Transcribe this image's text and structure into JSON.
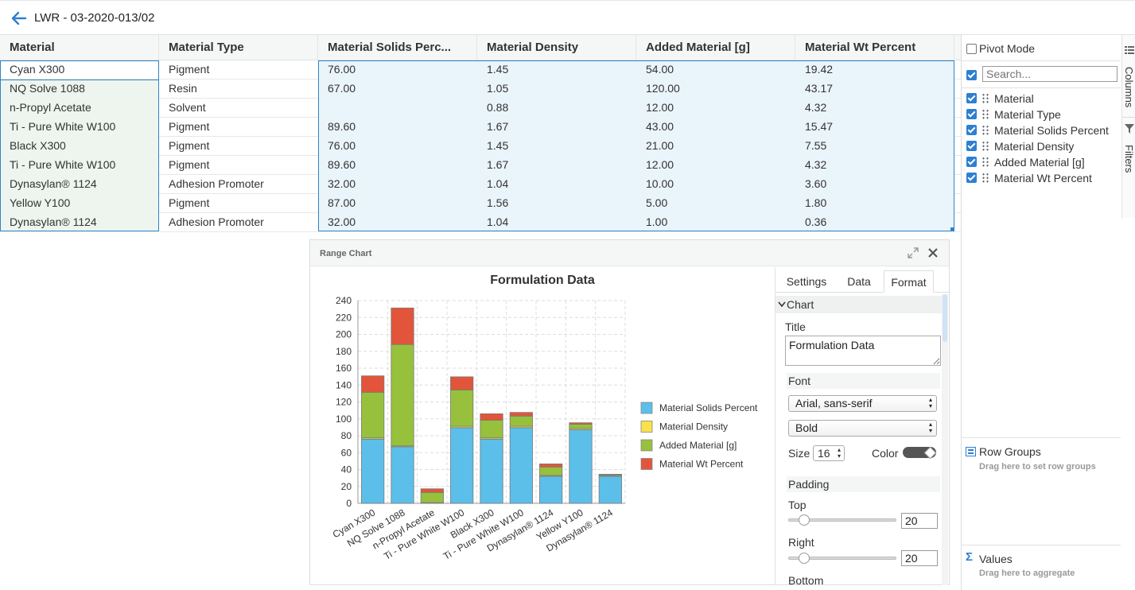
{
  "page": {
    "title": "LWR - 03-2020-013/02"
  },
  "grid": {
    "columns": [
      "Material",
      "Material Type",
      "Material Solids Perc...",
      "Material Density",
      "Added Material [g]",
      "Material Wt Percent"
    ],
    "rows": [
      [
        "Cyan X300",
        "Pigment",
        "76.00",
        "1.45",
        "54.00",
        "19.42"
      ],
      [
        "NQ Solve 1088",
        "Resin",
        "67.00",
        "1.05",
        "120.00",
        "43.17"
      ],
      [
        "n-Propyl Acetate",
        "Solvent",
        "",
        "0.88",
        "12.00",
        "4.32"
      ],
      [
        "Ti - Pure White W100",
        "Pigment",
        "89.60",
        "1.67",
        "43.00",
        "15.47"
      ],
      [
        "Black X300",
        "Pigment",
        "76.00",
        "1.45",
        "21.00",
        "7.55"
      ],
      [
        "Ti - Pure White W100",
        "Pigment",
        "89.60",
        "1.67",
        "12.00",
        "4.32"
      ],
      [
        "Dynasylan® 1124",
        "Adhesion Promoter",
        "32.00",
        "1.04",
        "10.00",
        "3.60"
      ],
      [
        "Yellow Y100",
        "Pigment",
        "87.00",
        "1.56",
        "5.00",
        "1.80"
      ],
      [
        "Dynasylan® 1124",
        "Adhesion Promoter",
        "32.00",
        "1.04",
        "1.00",
        "0.36"
      ]
    ]
  },
  "side_panel": {
    "pivot_mode": "Pivot Mode",
    "search_placeholder": "Search...",
    "columns": [
      "Material",
      "Material Type",
      "Material Solids Percent",
      "Material Density",
      "Added Material [g]",
      "Material Wt Percent"
    ],
    "tabs": {
      "columns": "Columns",
      "filters": "Filters"
    },
    "row_groups": {
      "title": "Row Groups",
      "hint": "Drag here to set row groups"
    },
    "values": {
      "title": "Values",
      "hint": "Drag here to aggregate"
    }
  },
  "chart_dialog": {
    "title": "Range Chart",
    "tabs": [
      "Settings",
      "Data",
      "Format"
    ],
    "format": {
      "group": "Chart",
      "title_label": "Title",
      "title_value": "Formulation Data",
      "font_label": "Font",
      "font_family_value": "Arial, sans-serif",
      "font_weight_value": "Bold",
      "size_label": "Size",
      "size_value": "16",
      "color_label": "Color",
      "padding_label": "Padding",
      "top_label": "Top",
      "top_value": "20",
      "right_label": "Right",
      "right_value": "20",
      "bottom_label": "Bottom"
    }
  },
  "chart_data": {
    "type": "bar",
    "stacked": true,
    "title": "Formulation Data",
    "categories": [
      "Cyan X300",
      "NQ Solve 1088",
      "n-Propyl Acetate",
      "Ti - Pure White W100",
      "Black X300",
      "Ti - Pure White W100",
      "Dynasylan® 1124",
      "Yellow Y100",
      "Dynasylan® 1124"
    ],
    "series": [
      {
        "name": "Material Solids Percent",
        "color": "#5bbfea",
        "values": [
          76,
          67,
          0,
          89.6,
          76,
          89.6,
          32,
          87,
          32
        ]
      },
      {
        "name": "Material Density",
        "color": "#f9e14b",
        "values": [
          1.45,
          1.05,
          0.88,
          1.67,
          1.45,
          1.67,
          1.04,
          1.56,
          1.04
        ]
      },
      {
        "name": "Added Material [g]",
        "color": "#97c13c",
        "values": [
          54,
          120,
          12,
          43,
          21,
          12,
          10,
          5,
          1
        ]
      },
      {
        "name": "Material Wt Percent",
        "color": "#e2553a",
        "values": [
          19.42,
          43.17,
          4.32,
          15.47,
          7.55,
          4.32,
          3.6,
          1.8,
          0.36
        ]
      }
    ],
    "ylim": [
      0,
      240
    ],
    "yticks": [
      0,
      20,
      40,
      60,
      80,
      100,
      120,
      140,
      160,
      180,
      200,
      220,
      240
    ],
    "grid": true,
    "legend_position": "right"
  },
  "colors": {
    "accent": "#2d7fd3",
    "selection": "#eaf4fb",
    "first_col": "#edf5ee"
  }
}
